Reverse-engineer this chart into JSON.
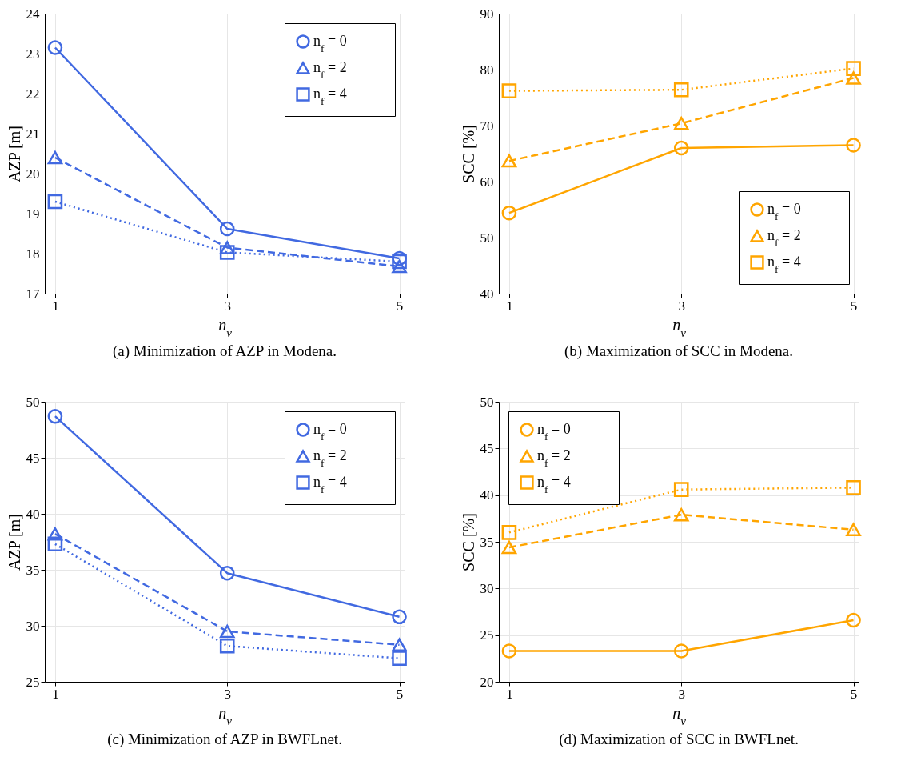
{
  "chart_data": [
    {
      "type": "line",
      "title": "(a) Minimization of AZP in Modena.",
      "xlabel": "n$_{v}$",
      "ylabel": "AZP [m]",
      "x": [
        1,
        3,
        5
      ],
      "xlim": [
        0.88,
        5.06
      ],
      "xticks": [
        1,
        3,
        5
      ],
      "ylim": [
        17,
        24
      ],
      "yticks": [
        17,
        18,
        19,
        20,
        21,
        22,
        23,
        24
      ],
      "grid": true,
      "legend": "top right",
      "series": [
        {
          "name": "n$_{f}$ = 0",
          "color": "#4169e1",
          "marker": "circle",
          "line_style": "solid",
          "values": [
            23.15,
            18.62,
            17.88
          ]
        },
        {
          "name": "n$_{f}$ = 2",
          "color": "#4169e1",
          "marker": "triangle",
          "line_style": "dashed",
          "values": [
            20.4,
            18.15,
            17.68
          ]
        },
        {
          "name": "n$_{f}$ = 4",
          "color": "#4169e1",
          "marker": "square",
          "line_style": "dotted",
          "values": [
            19.3,
            18.03,
            17.8
          ]
        }
      ]
    },
    {
      "type": "line",
      "title": "(b) Maximization of SCC in Modena.",
      "xlabel": "n$_{v}$",
      "ylabel": "SCC [%]",
      "x": [
        1,
        3,
        5
      ],
      "xlim": [
        0.88,
        5.06
      ],
      "xticks": [
        1,
        3,
        5
      ],
      "ylim": [
        40,
        90
      ],
      "yticks": [
        40,
        50,
        60,
        70,
        80,
        90
      ],
      "grid": true,
      "legend": "bottom right",
      "series": [
        {
          "name": "n$_{f}$ = 0",
          "color": "#ffa500",
          "marker": "circle",
          "line_style": "solid",
          "values": [
            54.4,
            66.0,
            66.5
          ]
        },
        {
          "name": "n$_{f}$ = 2",
          "color": "#ffa500",
          "marker": "triangle",
          "line_style": "dashed",
          "values": [
            63.7,
            70.4,
            78.5
          ]
        },
        {
          "name": "n$_{f}$ = 4",
          "color": "#ffa500",
          "marker": "square",
          "line_style": "dotted",
          "values": [
            76.2,
            76.4,
            80.2
          ]
        }
      ]
    },
    {
      "type": "line",
      "title": "(c) Minimization of AZP in BWFLnet.",
      "xlabel": "n$_{v}$",
      "ylabel": "AZP [m]",
      "x": [
        1,
        3,
        5
      ],
      "xlim": [
        0.88,
        5.06
      ],
      "xticks": [
        1,
        3,
        5
      ],
      "ylim": [
        25,
        50
      ],
      "yticks": [
        25,
        30,
        35,
        40,
        45,
        50
      ],
      "grid": true,
      "legend": "top right",
      "series": [
        {
          "name": "n$_{f}$ = 0",
          "color": "#4169e1",
          "marker": "circle",
          "line_style": "solid",
          "values": [
            48.7,
            34.7,
            30.8
          ]
        },
        {
          "name": "n$_{f}$ = 2",
          "color": "#4169e1",
          "marker": "triangle",
          "line_style": "dashed",
          "values": [
            38.2,
            29.5,
            28.3
          ]
        },
        {
          "name": "n$_{f}$ = 4",
          "color": "#4169e1",
          "marker": "square",
          "line_style": "dotted",
          "values": [
            37.3,
            28.2,
            27.1
          ]
        }
      ]
    },
    {
      "type": "line",
      "title": "(d) Maximization of SCC in BWFLnet.",
      "xlabel": "n$_{v}$",
      "ylabel": "SCC [%]",
      "x": [
        1,
        3,
        5
      ],
      "xlim": [
        0.88,
        5.06
      ],
      "xticks": [
        1,
        3,
        5
      ],
      "ylim": [
        20,
        50
      ],
      "yticks": [
        20,
        25,
        30,
        35,
        40,
        45,
        50
      ],
      "grid": true,
      "legend": "top left",
      "series": [
        {
          "name": "n$_{f}$ = 0",
          "color": "#ffa500",
          "marker": "circle",
          "line_style": "solid",
          "values": [
            23.3,
            23.3,
            26.6
          ]
        },
        {
          "name": "n$_{f}$ = 2",
          "color": "#ffa500",
          "marker": "triangle",
          "line_style": "dashed",
          "values": [
            34.4,
            37.9,
            36.3
          ]
        },
        {
          "name": "n$_{f}$ = 4",
          "color": "#ffa500",
          "marker": "square",
          "line_style": "dotted",
          "values": [
            36.0,
            40.6,
            40.8
          ]
        }
      ]
    }
  ]
}
